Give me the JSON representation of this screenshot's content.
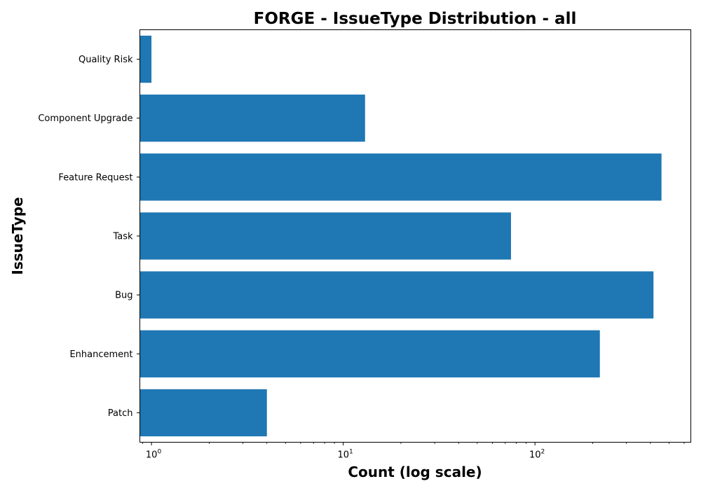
{
  "chart_data": {
    "type": "bar",
    "orientation": "horizontal",
    "title": "FORGE - IssueType Distribution - all",
    "xlabel": "Count (log scale)",
    "ylabel": "IssueType",
    "xscale": "log",
    "xlim": [
      0.87,
      650
    ],
    "x_ticks": [
      {
        "base": "10",
        "exponent": "0",
        "value": 1
      },
      {
        "base": "10",
        "exponent": "1",
        "value": 10
      },
      {
        "base": "10",
        "exponent": "2",
        "value": 100
      }
    ],
    "categories": [
      "Quality Risk",
      "Component  Upgrade",
      "Feature Request",
      "Task",
      "Bug",
      "Enhancement",
      "Patch"
    ],
    "values": [
      1,
      13,
      457,
      75,
      415,
      218,
      4
    ],
    "bar_color": "#1f77b4",
    "grid": false,
    "legend": "none"
  }
}
